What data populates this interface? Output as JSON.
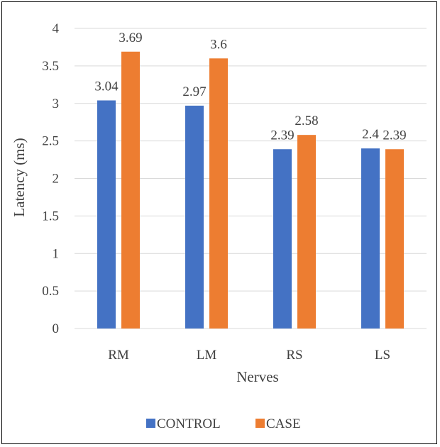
{
  "chart_data": {
    "type": "bar",
    "categories": [
      "RM",
      "LM",
      "RS",
      "LS"
    ],
    "series": [
      {
        "name": "CONTROL",
        "values": [
          3.04,
          2.97,
          2.39,
          2.4
        ],
        "labels": [
          "3.04",
          "2.97",
          "2.39",
          "2.4"
        ],
        "color": "#4472C4"
      },
      {
        "name": "CASE",
        "values": [
          3.69,
          3.6,
          2.58,
          2.39
        ],
        "labels": [
          "3.69",
          "3.6",
          "2.58",
          "2.39"
        ],
        "color": "#ED7D31"
      }
    ],
    "title": "",
    "xlabel": "Nerves",
    "ylabel": "Latency (ms)",
    "ylim": [
      0,
      4
    ],
    "yticks": [
      "0",
      "0.5",
      "1",
      "1.5",
      "2",
      "2.5",
      "3",
      "3.5",
      "4"
    ],
    "grid": true,
    "legend": "bottom",
    "gridline_color": "#D9D9D9",
    "text_color": "#404040"
  }
}
